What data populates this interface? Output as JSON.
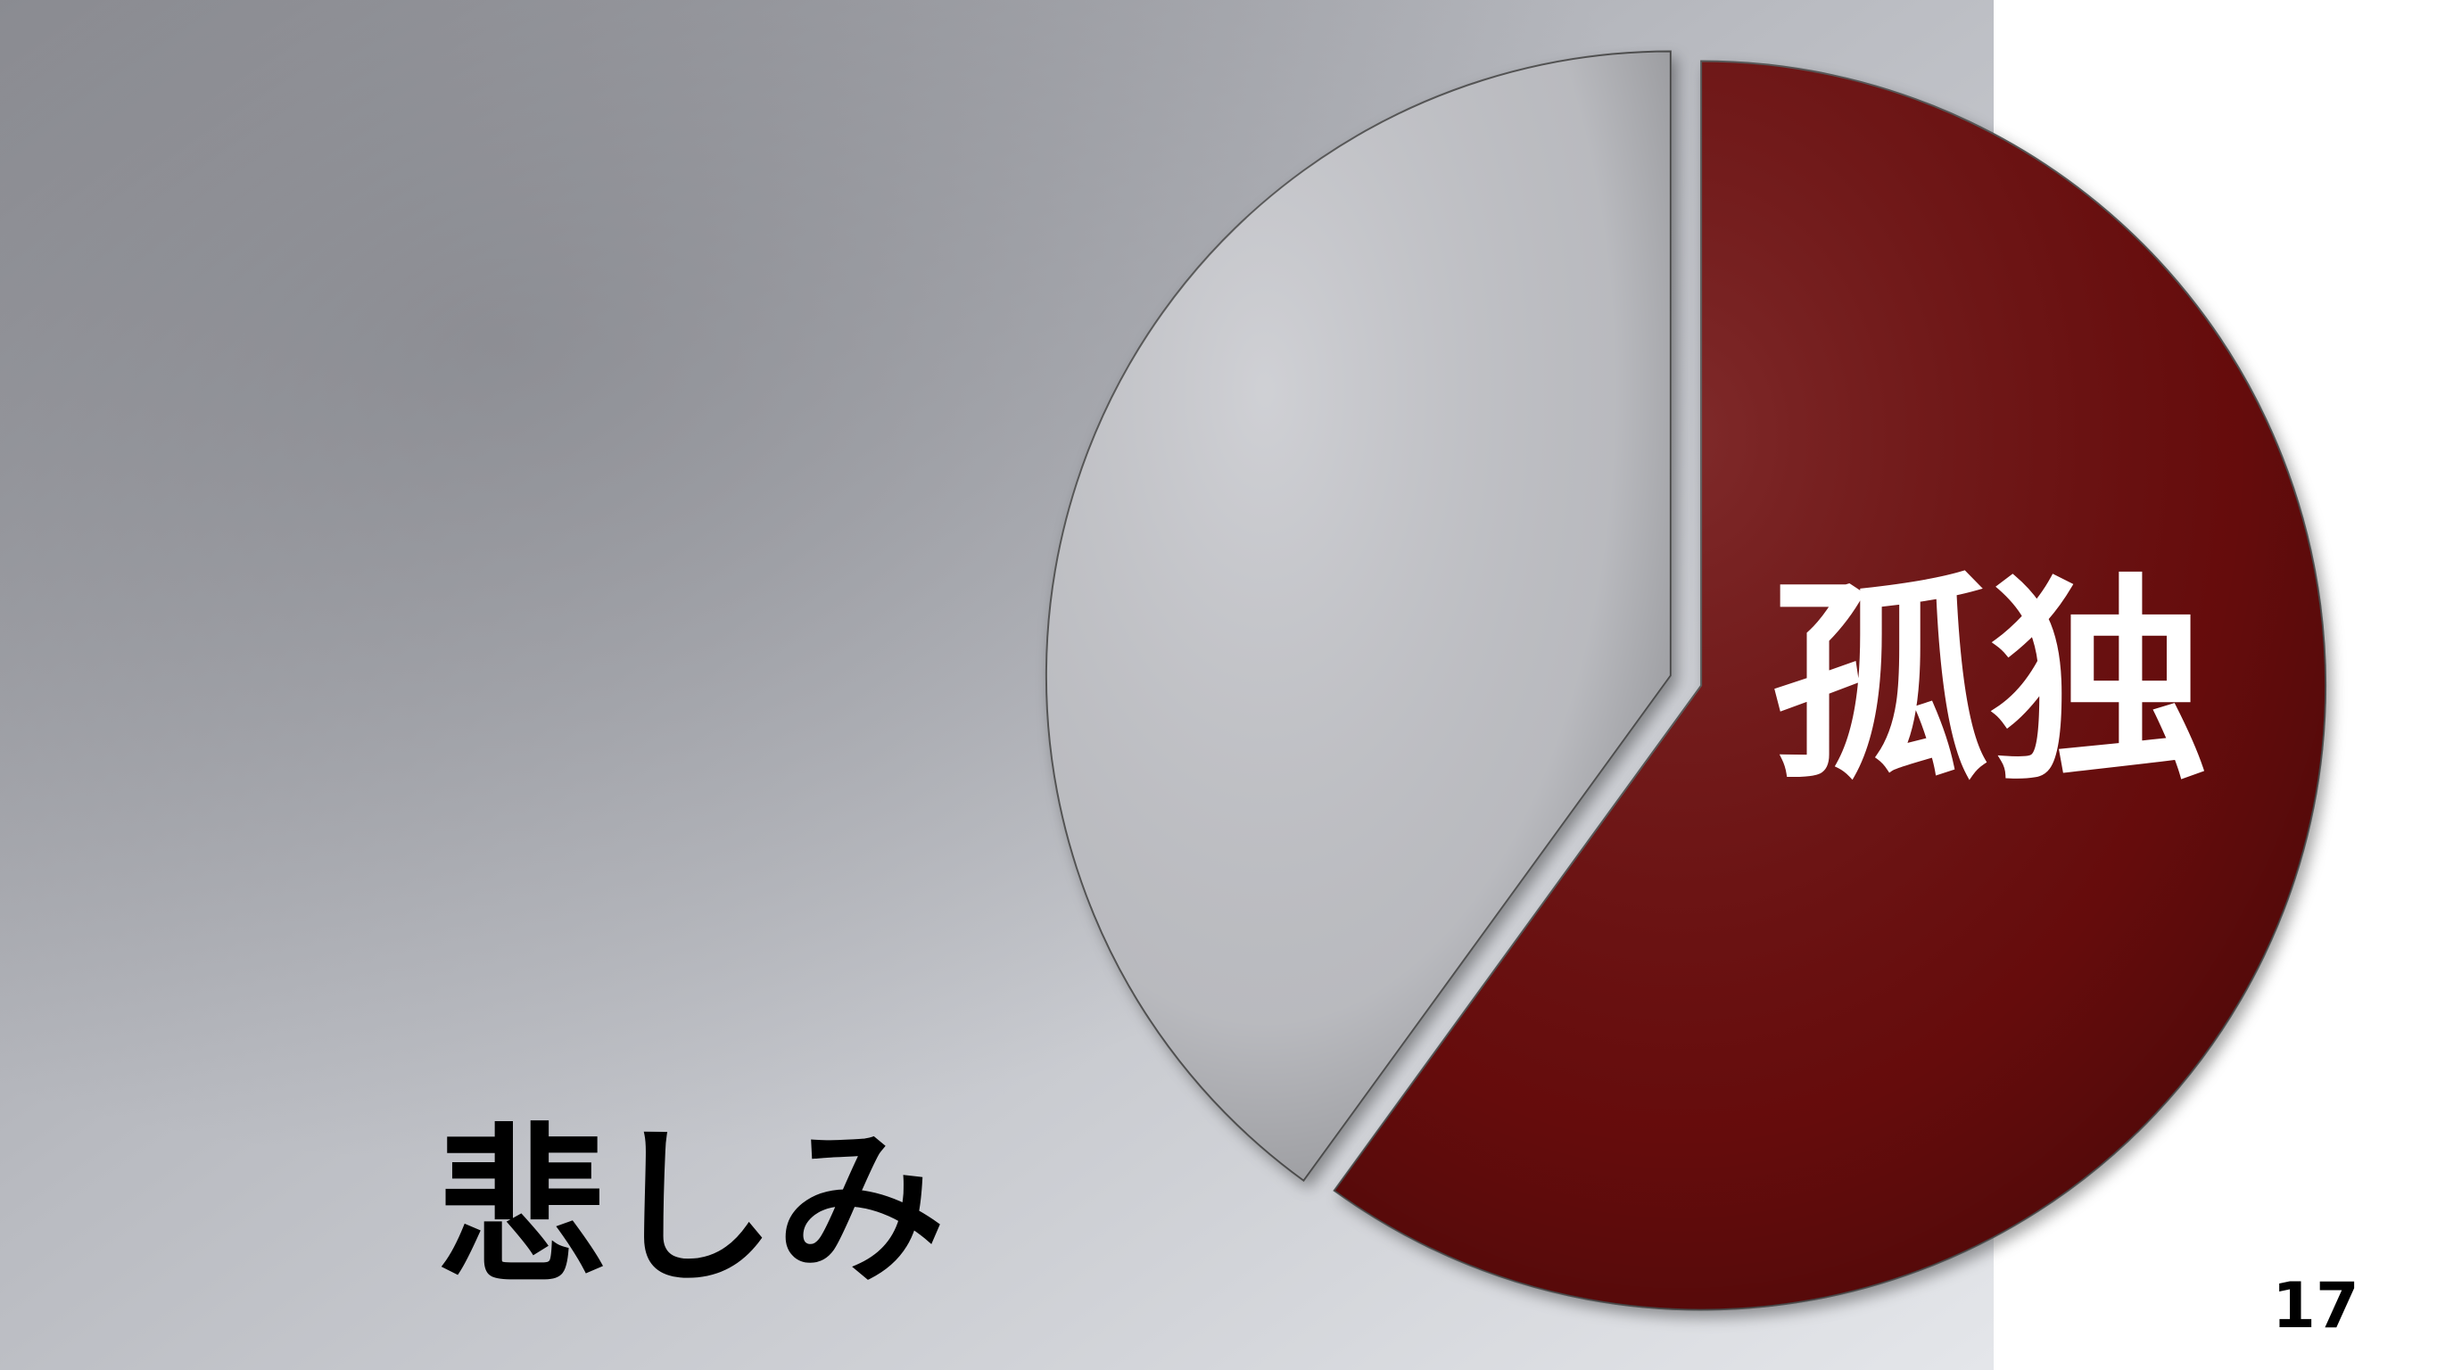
{
  "chart_data": {
    "type": "pie",
    "categories": [
      "孤独",
      "悲しみ"
    ],
    "values": [
      60,
      40
    ],
    "colors": [
      "#6e0b0d",
      "#c9cacf"
    ]
  },
  "page_number": "17"
}
